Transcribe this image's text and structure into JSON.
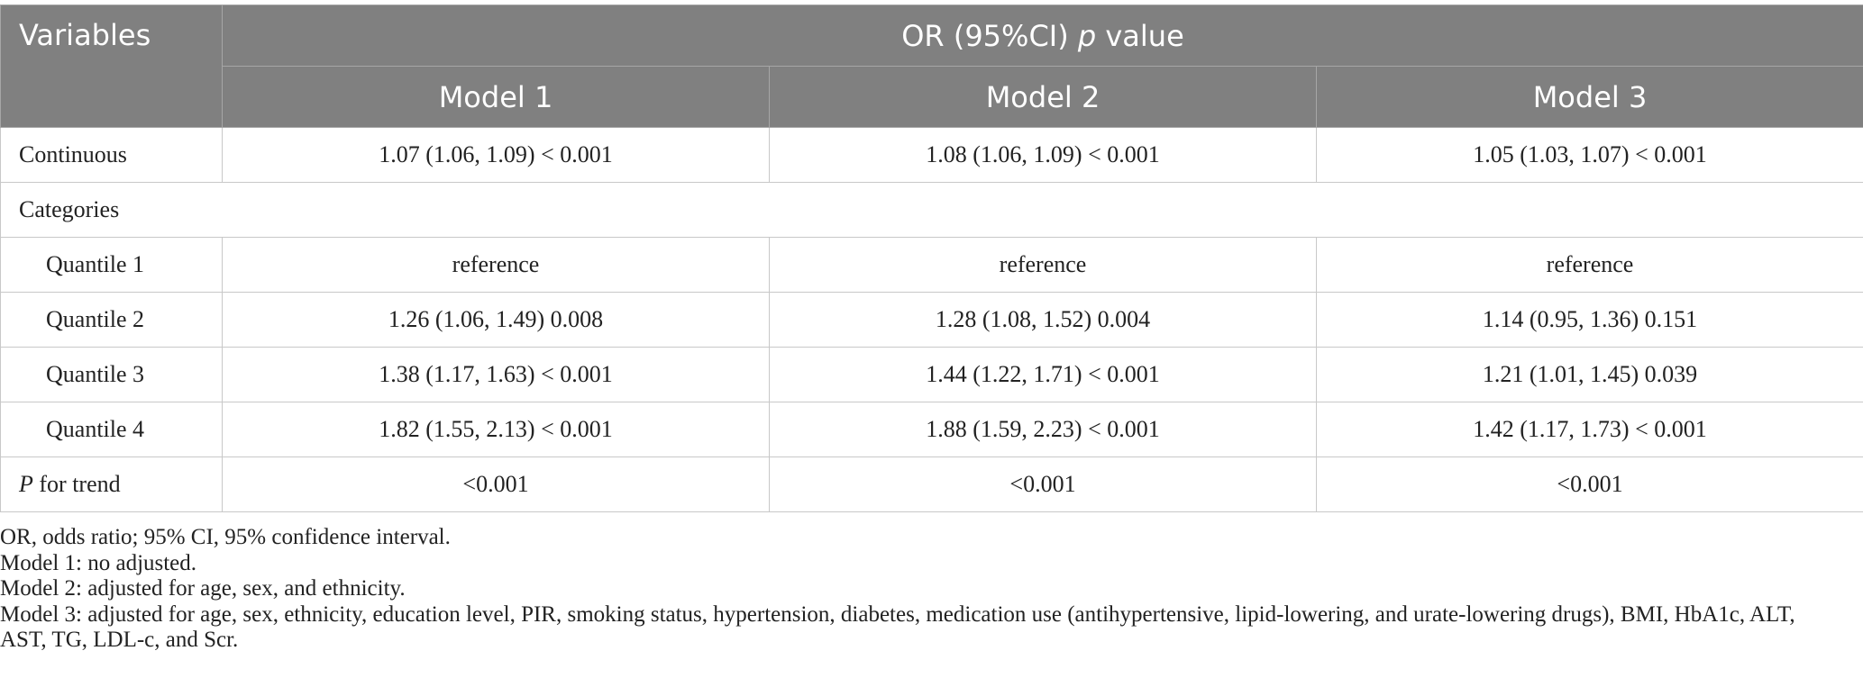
{
  "header": {
    "variables": "Variables",
    "group_prefix": "OR (95%CI) ",
    "group_p": "p",
    "group_suffix": " value",
    "models": [
      "Model 1",
      "Model 2",
      "Model 3"
    ]
  },
  "rows": {
    "continuous": {
      "label": "Continuous",
      "values": [
        "1.07 (1.06, 1.09) < 0.001",
        "1.08 (1.06, 1.09) < 0.001",
        "1.05 (1.03, 1.07) < 0.001"
      ]
    },
    "categories": {
      "label": "Categories"
    },
    "quantiles": [
      {
        "label": "Quantile 1",
        "values": [
          "reference",
          "reference",
          "reference"
        ]
      },
      {
        "label": "Quantile 2",
        "values": [
          "1.26 (1.06, 1.49) 0.008",
          "1.28 (1.08, 1.52) 0.004",
          "1.14 (0.95, 1.36) 0.151"
        ]
      },
      {
        "label": "Quantile 3",
        "values": [
          "1.38 (1.17, 1.63) < 0.001",
          "1.44 (1.22, 1.71) < 0.001",
          "1.21 (1.01, 1.45) 0.039"
        ]
      },
      {
        "label": "Quantile 4",
        "values": [
          "1.82 (1.55, 2.13) < 0.001",
          "1.88 (1.59, 2.23) < 0.001",
          "1.42 (1.17, 1.73) < 0.001"
        ]
      }
    ],
    "trend": {
      "label_p": "P",
      "label_rest": " for trend",
      "values": [
        "<0.001",
        "<0.001",
        "<0.001"
      ]
    }
  },
  "notes": [
    "OR, odds ratio; 95% CI, 95% confidence interval.",
    "Model 1: no adjusted.",
    "Model 2: adjusted for age, sex, and ethnicity.",
    "Model 3: adjusted for age, sex, ethnicity, education level, PIR, smoking status, hypertension, diabetes, medication use (antihypertensive, lipid-lowering, and urate-lowering drugs), BMI, HbA1c, ALT, AST, TG, LDL-c, and Scr."
  ]
}
